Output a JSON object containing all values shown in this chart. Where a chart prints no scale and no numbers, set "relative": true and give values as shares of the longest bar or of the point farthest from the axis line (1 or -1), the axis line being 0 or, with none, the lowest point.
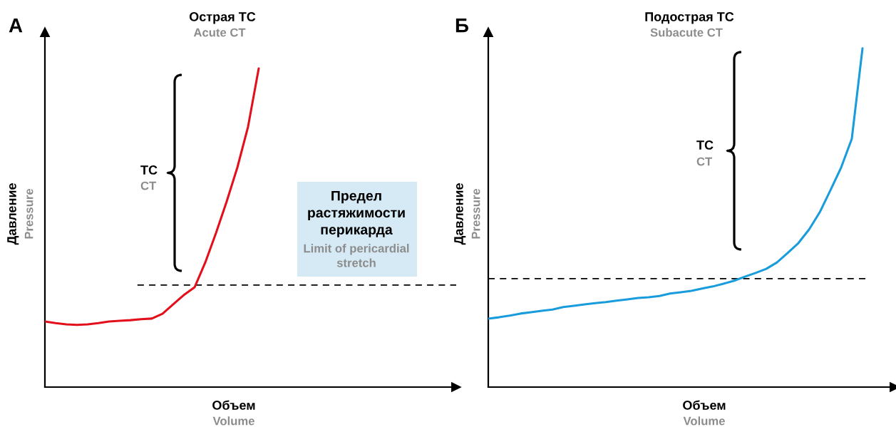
{
  "chart_data": [
    {
      "type": "line",
      "title": "Острая ТС",
      "subtitle": "Acute CT",
      "xlabel": "Объем\nVolume",
      "ylabel": "Давление\nPressure",
      "relative": true,
      "categories": [
        null,
        null,
        null,
        null,
        null,
        null,
        null,
        null,
        null,
        null,
        null,
        null,
        null,
        null,
        null,
        null,
        null,
        null,
        null,
        null,
        null,
        null,
        null,
        null,
        null,
        null,
        null,
        null,
        null,
        null,
        null,
        null,
        null,
        null,
        null,
        null,
        null,
        null,
        null
      ],
      "series": [
        {
          "color": "#e3101b",
          "values": [
            0.206,
            0.201,
            0.197,
            0.195,
            0.197,
            0.201,
            0.206,
            0.208,
            0.21,
            0.213,
            0.215,
            0.23,
            0.26,
            0.289,
            0.313,
            0.391,
            0.483,
            0.582,
            0.689,
            0.817,
            1,
            null,
            null,
            null,
            null,
            null,
            null,
            null,
            null,
            null,
            null,
            null,
            null,
            null,
            null,
            null,
            null,
            null,
            null
          ]
        }
      ],
      "ref_lines": [
        {
          "axis": "y",
          "value": 0.32,
          "line_style": "dashed",
          "color": "#000000"
        }
      ],
      "annotations": [
        "А",
        "ТС",
        "CT",
        "Предел\nрастяжимости\nперикарда",
        "Limit of pericardial\nstretch"
      ]
    },
    {
      "type": "line",
      "title": "Подострая ТС",
      "subtitle": "Subacute CT",
      "xlabel": "Объем\nVolume",
      "ylabel": "Давление\nPressure",
      "relative": true,
      "categories": [
        null,
        null,
        null,
        null,
        null,
        null,
        null,
        null,
        null,
        null,
        null,
        null,
        null,
        null,
        null,
        null,
        null,
        null,
        null,
        null,
        null,
        null,
        null,
        null,
        null,
        null,
        null,
        null,
        null,
        null,
        null,
        null,
        null,
        null,
        null,
        null,
        null,
        null
      ],
      "series": [
        {
          "color": "#199cdb",
          "values": [
            0.202,
            0.206,
            0.211,
            0.217,
            0.221,
            0.225,
            0.229,
            0.236,
            0.24,
            0.244,
            0.248,
            0.251,
            0.255,
            0.259,
            0.263,
            0.265,
            0.269,
            0.276,
            0.28,
            0.284,
            0.291,
            0.297,
            0.305,
            0.314,
            0.326,
            0.337,
            0.349,
            0.368,
            0.396,
            0.425,
            0.465,
            0.516,
            0.581,
            0.648,
            0.733,
            1,
            null,
            null
          ]
        }
      ],
      "ref_lines": [
        {
          "axis": "y",
          "value": 0.32,
          "line_style": "dashed",
          "color": "#000000"
        }
      ],
      "annotations": [
        "Б",
        "ТС",
        "CT"
      ]
    }
  ]
}
